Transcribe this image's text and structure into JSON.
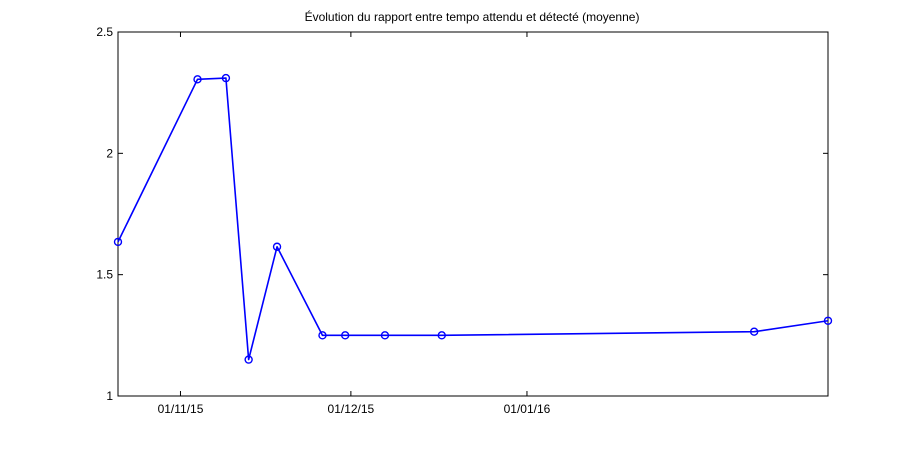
{
  "chart_data": {
    "type": "line",
    "title": "Évolution du rapport entre tempo attendu et détecté (moyenne)",
    "xlabel": "",
    "ylabel": "",
    "x_range": [
      "2015-10-21",
      "2016-02-23"
    ],
    "ylim": [
      1,
      2.5
    ],
    "x_ticks": [
      {
        "date": "2015-11-01",
        "label": "01/11/15"
      },
      {
        "date": "2015-12-01",
        "label": "01/12/15"
      },
      {
        "date": "2016-01-01",
        "label": "01/01/16"
      }
    ],
    "y_ticks": [
      {
        "value": 1,
        "label": "1"
      },
      {
        "value": 1.5,
        "label": "1.5"
      },
      {
        "value": 2,
        "label": "2"
      },
      {
        "value": 2.5,
        "label": "2.5"
      }
    ],
    "grid": false,
    "series": [
      {
        "name": "",
        "color": "#0000ff",
        "marker": "circle",
        "points": [
          {
            "x": "2015-10-21",
            "y": 1.635
          },
          {
            "x": "2015-11-04",
            "y": 2.305
          },
          {
            "x": "2015-11-09",
            "y": 2.31
          },
          {
            "x": "2015-11-13",
            "y": 1.15
          },
          {
            "x": "2015-11-18",
            "y": 1.615
          },
          {
            "x": "2015-11-26",
            "y": 1.25
          },
          {
            "x": "2015-11-30",
            "y": 1.25
          },
          {
            "x": "2015-12-07",
            "y": 1.25
          },
          {
            "x": "2015-12-17",
            "y": 1.25
          },
          {
            "x": "2016-02-10",
            "y": 1.265
          },
          {
            "x": "2016-02-23",
            "y": 1.31
          }
        ]
      }
    ]
  }
}
